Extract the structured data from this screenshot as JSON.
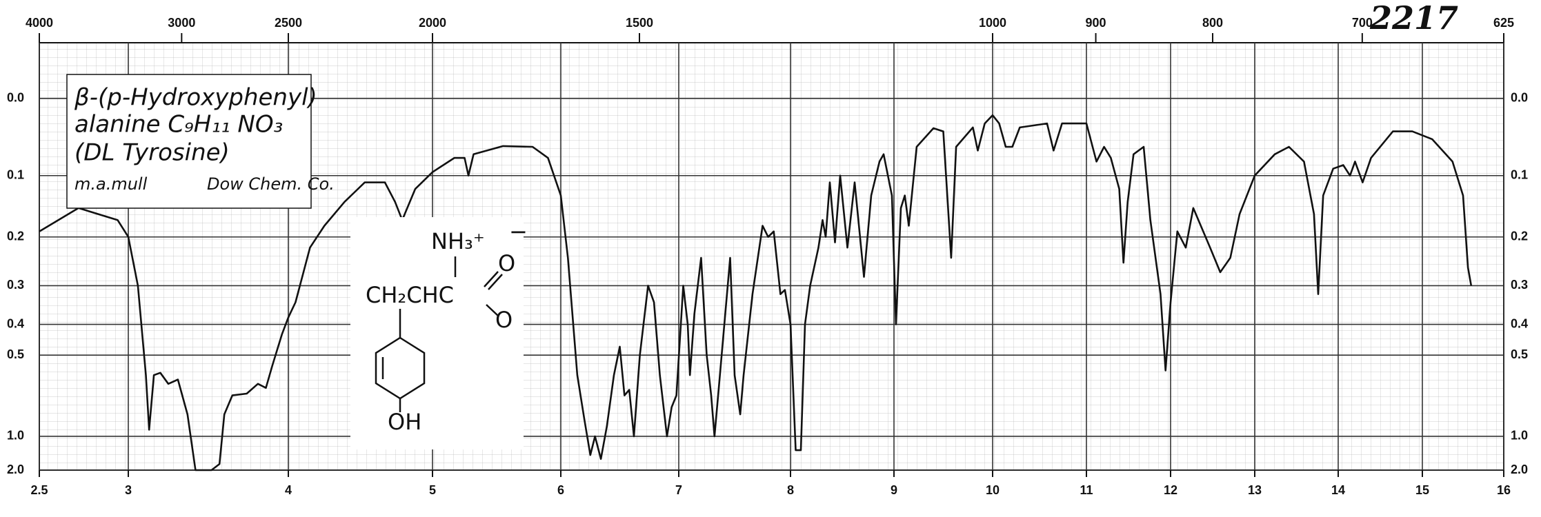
{
  "chart_data": {
    "type": "line",
    "catalog_number": "2217",
    "annotations": [
      "β-(p-Hydroxyphenyl)",
      "alanine  C₉H₁₁ NO₃",
      "(DL Tyrosine)",
      "m.a.mull",
      "Dow Chem. Co."
    ],
    "structure_labels": [
      "NH₃⁺",
      "CH₂CHC",
      "O",
      "O",
      "−",
      "OH"
    ],
    "color": "#111111",
    "x": [
      2.5,
      2.72,
      2.94,
      3.0,
      3.06,
      3.11,
      3.13,
      3.16,
      3.2,
      3.25,
      3.31,
      3.37,
      3.42,
      3.52,
      3.57,
      3.6,
      3.65,
      3.74,
      3.81,
      3.86,
      3.9,
      3.96,
      4.0,
      4.05,
      4.15,
      4.25,
      4.39,
      4.53,
      4.67,
      4.74,
      4.79,
      4.88,
      5.0,
      5.17,
      5.25,
      5.28,
      5.32,
      5.55,
      5.78,
      5.9,
      6.0,
      6.06,
      6.14,
      6.2,
      6.25,
      6.29,
      6.34,
      6.39,
      6.45,
      6.5,
      6.54,
      6.58,
      6.62,
      6.67,
      6.74,
      6.79,
      6.84,
      6.9,
      6.94,
      6.98,
      7.04,
      7.08,
      7.1,
      7.14,
      7.2,
      7.25,
      7.29,
      7.32,
      7.36,
      7.46,
      7.5,
      7.55,
      7.58,
      7.66,
      7.75,
      7.8,
      7.85,
      7.91,
      7.95,
      8.0,
      8.05,
      8.1,
      8.14,
      8.19,
      8.27,
      8.31,
      8.34,
      8.38,
      8.43,
      8.48,
      8.55,
      8.62,
      8.71,
      8.78,
      8.86,
      8.9,
      8.98,
      9.02,
      9.07,
      9.11,
      9.15,
      9.23,
      9.4,
      9.5,
      9.58,
      9.63,
      9.8,
      9.85,
      9.92,
      10.0,
      10.07,
      10.14,
      10.21,
      10.29,
      10.58,
      10.65,
      10.74,
      11.0,
      11.12,
      11.21,
      11.29,
      11.39,
      11.44,
      11.49,
      11.56,
      11.68,
      11.76,
      11.88,
      11.94,
      12.0,
      12.08,
      12.18,
      12.27,
      12.47,
      12.59,
      12.71,
      12.82,
      13.0,
      13.24,
      13.41,
      13.59,
      13.71,
      13.76,
      13.82,
      13.94,
      14.06,
      14.14,
      14.2,
      14.29,
      14.39,
      14.65,
      14.88,
      15.12,
      15.37,
      15.5,
      15.56,
      15.6
    ],
    "values": [
      0.19,
      0.15,
      0.17,
      0.2,
      0.3,
      0.58,
      0.93,
      0.58,
      0.57,
      0.62,
      0.6,
      0.8,
      2.0,
      2.0,
      1.58,
      0.8,
      0.68,
      0.67,
      0.62,
      0.64,
      0.54,
      0.43,
      0.38,
      0.34,
      0.22,
      0.18,
      0.14,
      0.11,
      0.11,
      0.14,
      0.17,
      0.12,
      0.095,
      0.075,
      0.075,
      0.1,
      0.07,
      0.059,
      0.06,
      0.075,
      0.13,
      0.24,
      0.58,
      0.84,
      1.3,
      1.0,
      1.4,
      0.9,
      0.58,
      0.47,
      0.68,
      0.65,
      1.0,
      0.5,
      0.3,
      0.34,
      0.58,
      1.0,
      0.75,
      0.68,
      0.3,
      0.4,
      0.58,
      0.37,
      0.24,
      0.5,
      0.68,
      1.0,
      0.63,
      0.24,
      0.58,
      0.8,
      0.58,
      0.32,
      0.18,
      0.2,
      0.19,
      0.32,
      0.31,
      0.4,
      1.2,
      1.2,
      0.4,
      0.3,
      0.22,
      0.17,
      0.2,
      0.11,
      0.21,
      0.1,
      0.22,
      0.11,
      0.28,
      0.13,
      0.08,
      0.07,
      0.13,
      0.4,
      0.15,
      0.13,
      0.18,
      0.06,
      0.036,
      0.04,
      0.24,
      0.06,
      0.035,
      0.065,
      0.03,
      0.02,
      0.03,
      0.06,
      0.06,
      0.035,
      0.03,
      0.065,
      0.03,
      0.03,
      0.08,
      0.06,
      0.075,
      0.12,
      0.25,
      0.14,
      0.07,
      0.06,
      0.17,
      0.32,
      0.56,
      0.34,
      0.19,
      0.22,
      0.15,
      0.22,
      0.27,
      0.24,
      0.16,
      0.1,
      0.07,
      0.06,
      0.08,
      0.16,
      0.32,
      0.13,
      0.09,
      0.085,
      0.1,
      0.08,
      0.11,
      0.075,
      0.04,
      0.04,
      0.05,
      0.08,
      0.13,
      0.26,
      0.3
    ],
    "xlim": [
      2.5,
      16
    ],
    "xticks": [
      2.5,
      3,
      4,
      5,
      6,
      7,
      8,
      9,
      10,
      11,
      12,
      13,
      14,
      15,
      16
    ],
    "x2scale": "wavenumber",
    "x2ticks": [
      4000,
      3000,
      2500,
      2000,
      1500,
      1000,
      900,
      800,
      700,
      625
    ],
    "ylim": [
      -0.06,
      2.0
    ],
    "yscale": "transmittance",
    "yticks": [
      {
        "value": 0,
        "label": "0.0"
      },
      0.1,
      0.2,
      0.3,
      0.4,
      0.5,
      {
        "value": 1,
        "label": "1.0"
      },
      {
        "value": 2,
        "label": "2.0"
      }
    ],
    "grid": true
  }
}
